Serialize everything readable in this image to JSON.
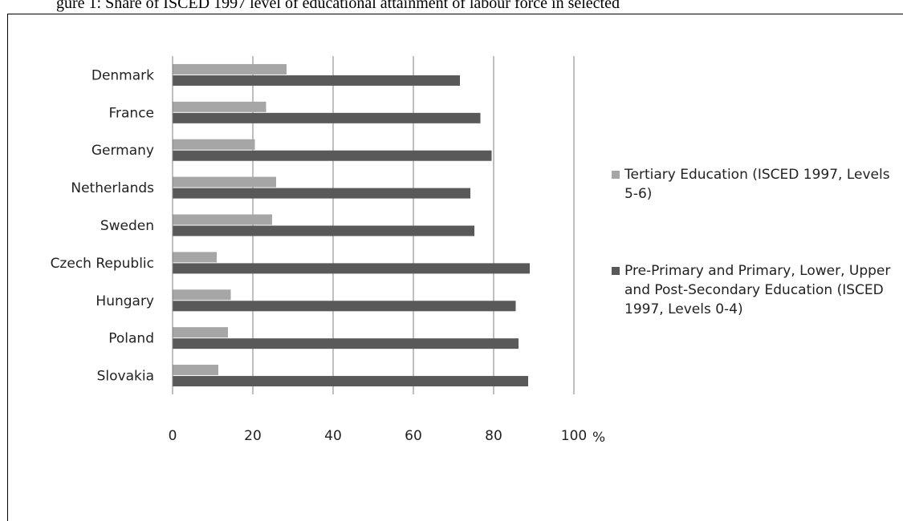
{
  "header": {
    "caption": "gure 1: Share of ISCED 1997 level of educational attainment of labour force in selected"
  },
  "colors": {
    "tertiary": "#a6a6a6",
    "primary_secondary": "#595959",
    "gridline": "#7f7f7f",
    "text": "#222222"
  },
  "chart_data": {
    "type": "bar",
    "orientation": "horizontal",
    "categories": [
      "Denmark",
      "France",
      "Germany",
      "Netherlands",
      "Sweden",
      "Czech Republic",
      "Hungary",
      "Poland",
      "Slovakia"
    ],
    "series": [
      {
        "name": "Tertiary Education (ISCED 1997, Levels 5-6)",
        "values": [
          28.4,
          23.3,
          20.5,
          25.8,
          24.8,
          11,
          14.5,
          13.8,
          11.4
        ]
      },
      {
        "name": "Pre-Primary and Primary, Lower, Upper and Post-Secondary Education (ISCED 1997, Levels 0-4)",
        "values": [
          71.6,
          76.7,
          79.5,
          74.2,
          75.2,
          89,
          85.5,
          86.2,
          88.6
        ]
      }
    ],
    "xlim": [
      0,
      100
    ],
    "xticks": [
      "0",
      "20",
      "40",
      "60",
      "80",
      "100"
    ],
    "x_unit": "%",
    "grid": true,
    "legend_position": "right"
  }
}
